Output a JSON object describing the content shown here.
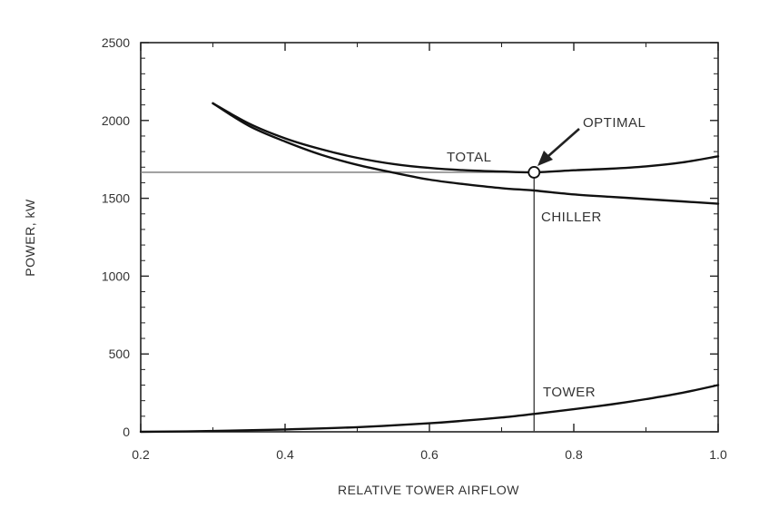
{
  "chart_data": {
    "type": "line",
    "xlabel": "RELATIVE TOWER AIRFLOW",
    "ylabel": "POWER, kW",
    "xlim": [
      0.2,
      1.0
    ],
    "ylim": [
      0,
      2500
    ],
    "x_ticks": [
      0.2,
      0.4,
      0.6,
      0.8,
      1.0
    ],
    "x_tick_labels": [
      "0.2",
      "0.4",
      "0.6",
      "0.8",
      "1.0"
    ],
    "y_ticks": [
      0,
      500,
      1000,
      1500,
      2000,
      2500
    ],
    "y_tick_labels": [
      "0",
      "500",
      "1000",
      "1500",
      "2000",
      "2500"
    ],
    "grid": false,
    "series": [
      {
        "name": "TOTAL",
        "x": [
          0.3,
          0.35,
          0.4,
          0.45,
          0.5,
          0.55,
          0.6,
          0.65,
          0.7,
          0.745,
          0.8,
          0.85,
          0.9,
          0.95,
          1.0
        ],
        "y": [
          2110,
          1980,
          1885,
          1815,
          1760,
          1720,
          1695,
          1680,
          1672,
          1667,
          1680,
          1690,
          1705,
          1730,
          1770
        ]
      },
      {
        "name": "CHILLER",
        "x": [
          0.3,
          0.35,
          0.4,
          0.45,
          0.5,
          0.55,
          0.6,
          0.65,
          0.7,
          0.745,
          0.8,
          0.85,
          0.9,
          0.95,
          1.0
        ],
        "y": [
          2110,
          1965,
          1865,
          1780,
          1715,
          1665,
          1620,
          1590,
          1565,
          1550,
          1525,
          1510,
          1495,
          1480,
          1465
        ]
      },
      {
        "name": "TOWER",
        "x": [
          0.2,
          0.3,
          0.4,
          0.5,
          0.6,
          0.65,
          0.7,
          0.745,
          0.8,
          0.85,
          0.9,
          0.95,
          1.0
        ],
        "y": [
          0,
          5,
          15,
          30,
          55,
          72,
          92,
          115,
          145,
          175,
          210,
          250,
          300
        ]
      }
    ],
    "reference_lines": {
      "optimal_power": 1667,
      "optimal_airflow": 0.745
    },
    "annotations": [
      {
        "text": "OPTIMAL",
        "x": 0.745,
        "y": 1667
      }
    ]
  }
}
